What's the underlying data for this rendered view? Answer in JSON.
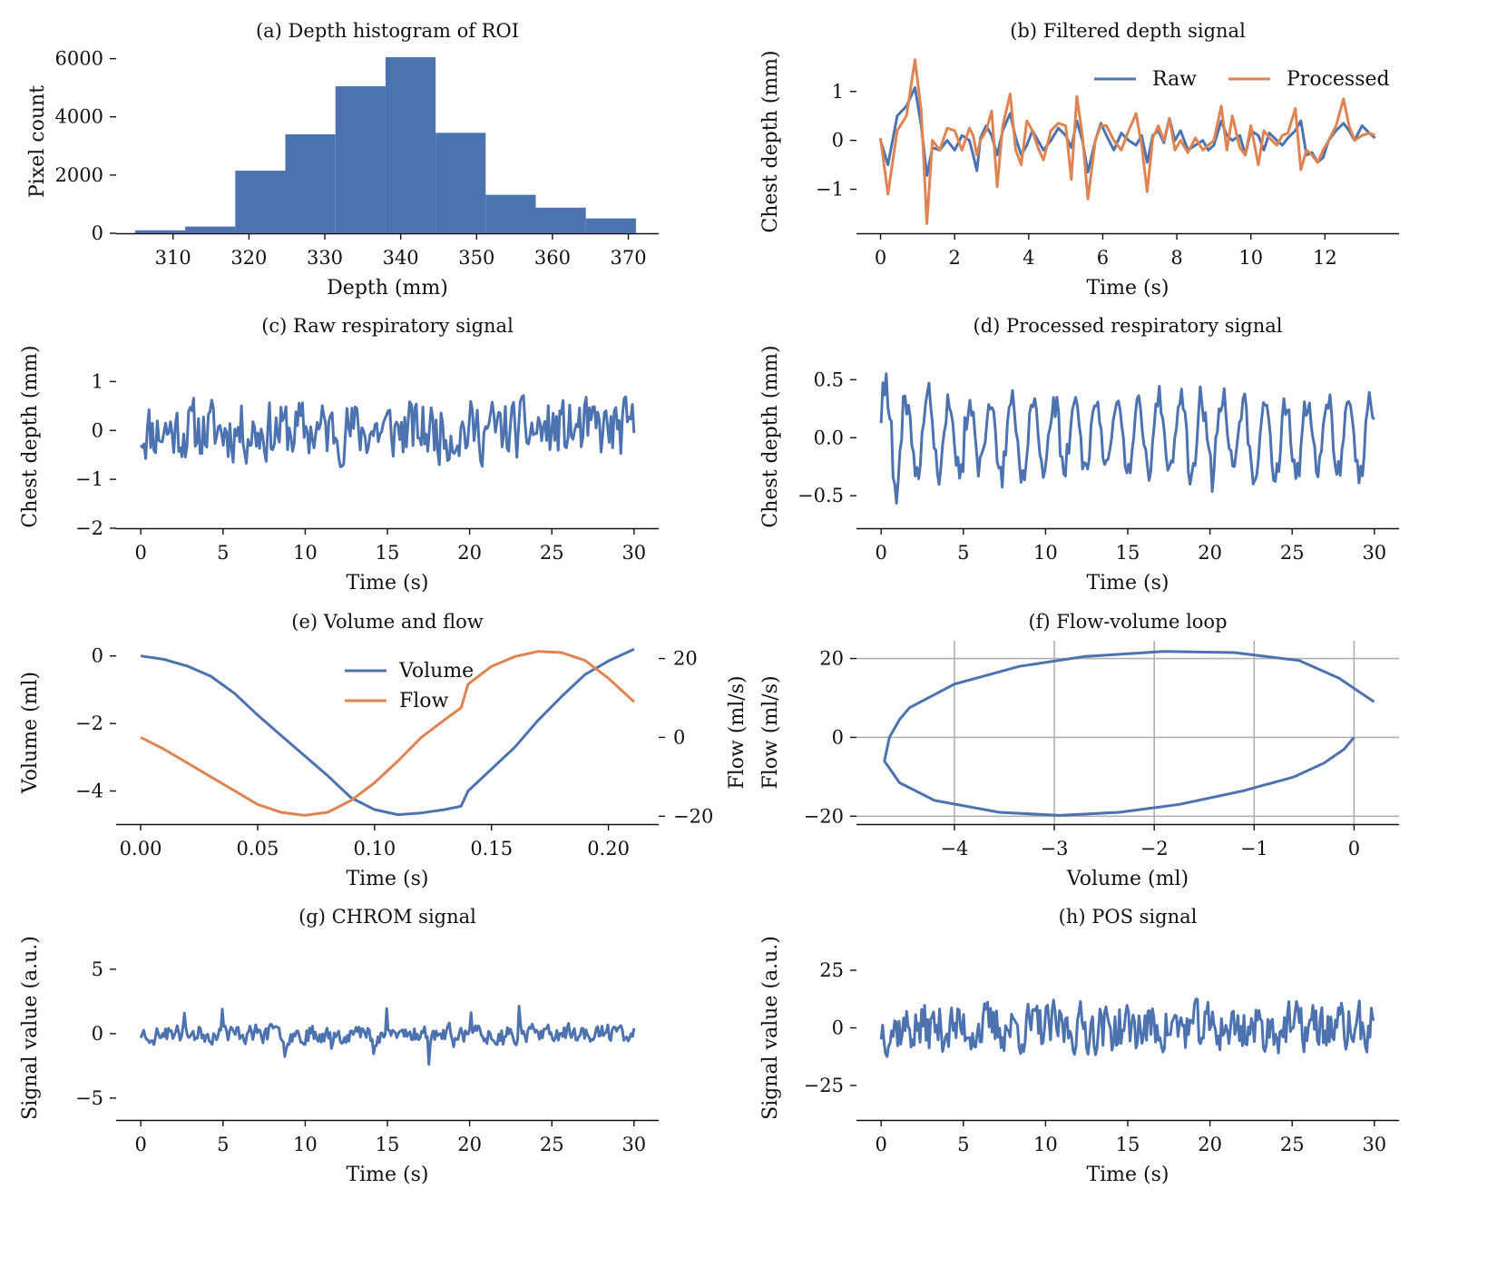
{
  "chart_data": [
    {
      "id": "a",
      "type": "bar",
      "title": "(a) Depth histogram of ROI",
      "xlabel": "Depth (mm)",
      "ylabel": "Pixel count",
      "xlim": [
        302.5,
        374
      ],
      "ylim": [
        0,
        6300
      ],
      "xticks": [
        310,
        320,
        330,
        340,
        350,
        360,
        370
      ],
      "yticks": [
        0,
        2000,
        4000,
        6000
      ],
      "bin_edges": [
        305,
        311.6,
        318.2,
        324.8,
        331.4,
        338,
        344.6,
        351.2,
        357.8,
        364.4,
        371
      ],
      "counts": [
        100,
        230,
        2150,
        3400,
        5050,
        6050,
        3450,
        1320,
        880,
        510
      ],
      "color": "#4c72b0"
    },
    {
      "id": "b",
      "type": "line",
      "title": "(b) Filtered depth signal",
      "xlabel": "Time (s)",
      "ylabel": "Chest depth (mm)",
      "xlim": [
        -0.65,
        14.0
      ],
      "ylim": [
        -1.9,
        1.85
      ],
      "xticks": [
        0,
        2,
        4,
        6,
        8,
        10,
        12
      ],
      "yticks": [
        -1,
        0,
        1
      ],
      "legend": "top-right",
      "series": [
        {
          "name": "Raw",
          "color": "#4c72b0",
          "x": [
            0,
            0.2,
            0.45,
            0.7,
            0.93,
            1.1,
            1.25,
            1.4,
            1.6,
            1.8,
            2.0,
            2.2,
            2.4,
            2.5,
            2.6,
            2.7,
            2.85,
            3.0,
            3.15,
            3.3,
            3.5,
            3.65,
            3.8,
            3.95,
            4.1,
            4.25,
            4.4,
            4.6,
            4.8,
            5.0,
            5.15,
            5.3,
            5.45,
            5.6,
            5.8,
            5.95,
            6.1,
            6.3,
            6.5,
            6.7,
            6.9,
            7.05,
            7.2,
            7.35,
            7.5,
            7.65,
            7.8,
            7.95,
            8.1,
            8.3,
            8.5,
            8.7,
            8.85,
            9.0,
            9.2,
            9.35,
            9.5,
            9.7,
            9.85,
            10.0,
            10.2,
            10.35,
            10.5,
            10.7,
            10.85,
            11.0,
            11.2,
            11.35,
            11.5,
            11.65,
            11.8,
            11.95,
            12.1,
            12.3,
            12.5,
            12.65,
            12.8,
            13.0,
            13.2,
            13.35
          ],
          "y": [
            0.0,
            -0.5,
            0.5,
            0.7,
            1.08,
            0.3,
            -0.72,
            -0.15,
            -0.2,
            0.0,
            -0.2,
            0.1,
            0.0,
            -0.3,
            -0.62,
            0.05,
            0.3,
            0.1,
            -0.3,
            0.2,
            0.55,
            0.05,
            -0.3,
            -0.1,
            0.2,
            0.0,
            -0.2,
            0.0,
            0.25,
            0.1,
            -0.15,
            0.4,
            0.0,
            -0.65,
            0.0,
            0.35,
            0.1,
            -0.2,
            0.15,
            0.0,
            -0.1,
            0.1,
            -0.45,
            0.1,
            0.2,
            -0.05,
            0.45,
            0.0,
            0.2,
            -0.2,
            -0.1,
            0.0,
            -0.2,
            -0.1,
            0.4,
            0.1,
            0.0,
            0.1,
            -0.3,
            0.2,
            0.1,
            -0.2,
            0.15,
            0.0,
            -0.1,
            0.05,
            0.2,
            0.4,
            -0.3,
            -0.25,
            -0.45,
            -0.35,
            0.0,
            0.2,
            0.35,
            0.2,
            0.0,
            0.3,
            0.15,
            0.05
          ]
        },
        {
          "name": "Processed",
          "color": "#dd8452",
          "x": [
            0,
            0.2,
            0.45,
            0.7,
            0.93,
            1.1,
            1.25,
            1.4,
            1.6,
            1.8,
            2.0,
            2.2,
            2.4,
            2.5,
            2.6,
            2.7,
            2.85,
            3.0,
            3.15,
            3.3,
            3.5,
            3.65,
            3.8,
            3.95,
            4.1,
            4.25,
            4.4,
            4.6,
            4.8,
            5.0,
            5.15,
            5.3,
            5.45,
            5.6,
            5.8,
            5.95,
            6.1,
            6.3,
            6.5,
            6.7,
            6.9,
            7.05,
            7.2,
            7.35,
            7.5,
            7.65,
            7.8,
            7.95,
            8.1,
            8.3,
            8.5,
            8.7,
            8.85,
            9.0,
            9.2,
            9.35,
            9.5,
            9.7,
            9.85,
            10.0,
            10.2,
            10.35,
            10.5,
            10.7,
            10.85,
            11.0,
            11.2,
            11.35,
            11.5,
            11.65,
            11.8,
            11.95,
            12.1,
            12.3,
            12.5,
            12.65,
            12.8,
            13.0,
            13.2,
            13.35
          ],
          "y": [
            0.05,
            -1.1,
            0.2,
            0.5,
            1.65,
            0.6,
            -1.7,
            0.0,
            -0.2,
            0.25,
            0.2,
            -0.2,
            0.25,
            0.1,
            -0.3,
            0.0,
            0.2,
            0.6,
            -0.95,
            0.3,
            0.95,
            -0.2,
            -0.5,
            0.4,
            0.2,
            -0.15,
            -0.4,
            0.2,
            0.35,
            0.3,
            -0.8,
            0.9,
            0.1,
            -1.2,
            0.0,
            0.3,
            0.3,
            0.0,
            -0.2,
            0.2,
            0.55,
            -0.1,
            -1.05,
            0.05,
            0.3,
            0.0,
            0.45,
            -0.2,
            0.0,
            -0.25,
            0.05,
            -0.2,
            -0.1,
            0.0,
            0.7,
            -0.2,
            0.5,
            -0.15,
            -0.3,
            0.3,
            -0.5,
            0.2,
            0.05,
            -0.1,
            0.1,
            0.15,
            0.65,
            -0.6,
            -0.2,
            -0.3,
            -0.45,
            -0.2,
            0.0,
            0.3,
            0.85,
            0.3,
            0.0,
            0.1,
            0.15,
            0.1
          ]
        }
      ]
    },
    {
      "id": "c",
      "type": "line",
      "title": "(c) Raw respiratory signal",
      "xlabel": "Time (s)",
      "ylabel": "Chest depth (mm)",
      "xlim": [
        -1.5,
        31.5
      ],
      "ylim": [
        -2.0,
        1.75
      ],
      "xticks": [
        0,
        5,
        10,
        15,
        20,
        25,
        30
      ],
      "yticks": [
        -2,
        -1,
        0,
        1
      ],
      "generated": {
        "kind": "noise",
        "seed": 11,
        "n": 300,
        "amp": 0.75,
        "min": -1.85,
        "max": 1.6
      },
      "series": [
        {
          "name": "",
          "color": "#4c72b0"
        }
      ]
    },
    {
      "id": "d",
      "type": "line",
      "title": "(d) Processed respiratory signal",
      "xlabel": "Time (s)",
      "ylabel": "Chest depth (mm)",
      "xlim": [
        -1.5,
        31.5
      ],
      "ylim": [
        -0.78,
        0.8
      ],
      "xticks": [
        0,
        5,
        10,
        15,
        20,
        25,
        30
      ],
      "yticks": [
        -0.5,
        0.0,
        0.5
      ],
      "generated": {
        "kind": "oscill",
        "seed": 5,
        "n": 290,
        "amp": 0.42,
        "min": -0.72,
        "max": 0.75
      },
      "series": [
        {
          "name": "",
          "color": "#4c72b0"
        }
      ]
    },
    {
      "id": "e",
      "type": "line",
      "title": "(e) Volume and flow",
      "xlabel": "Time (s)",
      "ylabel": "Volume (ml)",
      "ylabel_right": "Flow (ml/s)",
      "xlim": [
        -0.0105,
        0.2215
      ],
      "ylim": [
        -4.98,
        0.45
      ],
      "ylim_right": [
        -22,
        24.5
      ],
      "xticks": [
        0.0,
        0.05,
        0.1,
        0.15,
        0.2
      ],
      "yticks": [
        -4,
        -2,
        0
      ],
      "yticks_right": [
        -20,
        0,
        20
      ],
      "legend": "upper-center",
      "series": [
        {
          "name": "Volume",
          "color": "#4c72b0",
          "axis": "left",
          "x": [
            0.0,
            0.01,
            0.02,
            0.03,
            0.04,
            0.05,
            0.06,
            0.07,
            0.08,
            0.09,
            0.1,
            0.11,
            0.12,
            0.13,
            0.137,
            0.14,
            0.15,
            0.16,
            0.17,
            0.18,
            0.19,
            0.2,
            0.211
          ],
          "y": [
            0.0,
            -0.1,
            -0.3,
            -0.6,
            -1.1,
            -1.75,
            -2.35,
            -2.95,
            -3.55,
            -4.2,
            -4.55,
            -4.7,
            -4.65,
            -4.55,
            -4.45,
            -4.0,
            -3.35,
            -2.7,
            -1.9,
            -1.2,
            -0.55,
            -0.15,
            0.2
          ]
        },
        {
          "name": "Flow",
          "color": "#dd8452",
          "axis": "right",
          "x": [
            0.0,
            0.01,
            0.02,
            0.03,
            0.04,
            0.05,
            0.06,
            0.07,
            0.08,
            0.09,
            0.1,
            0.11,
            0.12,
            0.13,
            0.137,
            0.14,
            0.15,
            0.16,
            0.17,
            0.18,
            0.19,
            0.2,
            0.211
          ],
          "y": [
            0.0,
            -3,
            -6.5,
            -10,
            -13.5,
            -17,
            -19,
            -19.8,
            -19,
            -16,
            -11.5,
            -6,
            0,
            4.5,
            7.5,
            13.5,
            18,
            20.5,
            21.8,
            21.5,
            19.5,
            15,
            9
          ]
        }
      ]
    },
    {
      "id": "f",
      "type": "line",
      "title": "(f) Flow-volume loop",
      "xlabel": "Volume (ml)",
      "ylabel": "Flow (ml/s)",
      "xlim": [
        -4.98,
        0.45
      ],
      "ylim": [
        -22,
        24.5
      ],
      "xticks": [
        -4,
        -3,
        -2,
        -1,
        0
      ],
      "yticks": [
        -20,
        0,
        20
      ],
      "grid": true,
      "series": [
        {
          "name": "",
          "color": "#4c72b0",
          "x": [
            0.0,
            -0.1,
            -0.3,
            -0.6,
            -1.1,
            -1.75,
            -2.35,
            -2.95,
            -3.55,
            -4.2,
            -4.55,
            -4.7,
            -4.65,
            -4.55,
            -4.45,
            -4.0,
            -3.35,
            -2.7,
            -1.9,
            -1.2,
            -0.55,
            -0.15,
            0.2
          ],
          "y": [
            0.0,
            -3,
            -6.5,
            -10,
            -13.5,
            -17,
            -19,
            -19.8,
            -19,
            -16,
            -11.5,
            -6,
            0,
            4.5,
            7.5,
            13.5,
            18,
            20.5,
            21.8,
            21.5,
            19.5,
            15,
            9
          ]
        }
      ]
    },
    {
      "id": "g",
      "type": "line",
      "title": "(g) CHROM signal",
      "xlabel": "Time (s)",
      "ylabel": "Signal value (a.u.)",
      "xlim": [
        -1.5,
        31.5
      ],
      "ylim": [
        -6.7,
        7.6
      ],
      "xticks": [
        0,
        5,
        10,
        15,
        20,
        25,
        30
      ],
      "yticks": [
        -5,
        0,
        5
      ],
      "generated": {
        "kind": "spiky",
        "seed": 23,
        "n": 340,
        "amp": 1.1,
        "min": -6.1,
        "max": 7.2
      },
      "series": [
        {
          "name": "",
          "color": "#4c72b0"
        }
      ]
    },
    {
      "id": "h",
      "type": "line",
      "title": "(h) POS signal",
      "xlabel": "Time (s)",
      "ylabel": "Signal value (a.u.)",
      "xlim": [
        -1.5,
        31.5
      ],
      "ylim": [
        -40,
        40
      ],
      "xticks": [
        0,
        5,
        10,
        15,
        20,
        25,
        30
      ],
      "yticks": [
        -25,
        0,
        25
      ],
      "generated": {
        "kind": "noise",
        "seed": 37,
        "n": 330,
        "amp": 13,
        "min": -37,
        "max": 38
      },
      "series": [
        {
          "name": "",
          "color": "#4c72b0"
        }
      ]
    }
  ]
}
